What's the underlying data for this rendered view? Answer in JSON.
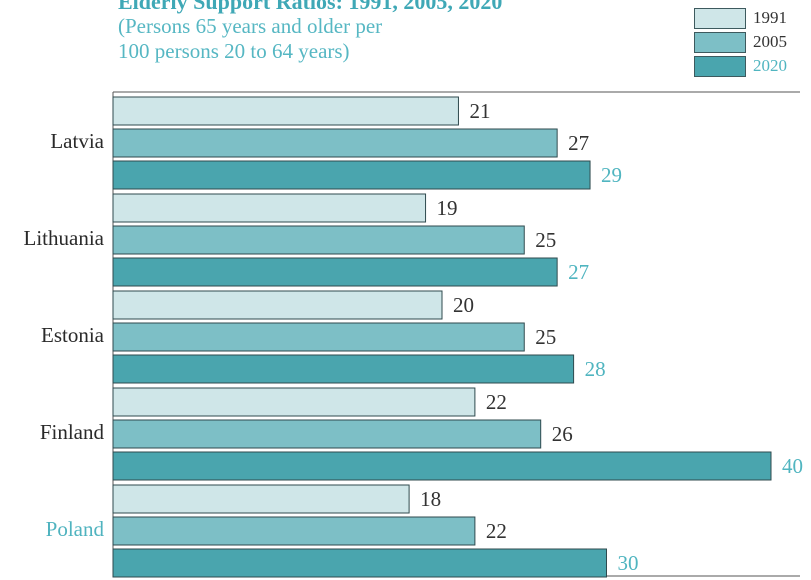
{
  "chart_data": {
    "type": "bar",
    "orientation": "horizontal",
    "title": "Elderly Support Ratios: 1991, 2005, 2020",
    "subtitle": "(Persons 65 years and older per\n100 persons 20 to 64 years)",
    "categories": [
      "Latvia",
      "Lithuania",
      "Estonia",
      "Finland",
      "Poland"
    ],
    "highlight_category": "Poland",
    "series": [
      {
        "name": "1991",
        "values": [
          21,
          19,
          20,
          22,
          18
        ],
        "color": "#cfe6e8",
        "label_color": "#333333"
      },
      {
        "name": "2005",
        "values": [
          27,
          25,
          25,
          26,
          22
        ],
        "color": "#7dbfc6",
        "label_color": "#333333"
      },
      {
        "name": "2020",
        "values": [
          29,
          27,
          28,
          40,
          30
        ],
        "color": "#4aa5ae",
        "label_color": "#50b5c0"
      }
    ],
    "xlim": [
      0,
      40
    ],
    "legend_position": "top-right",
    "grid": false
  }
}
